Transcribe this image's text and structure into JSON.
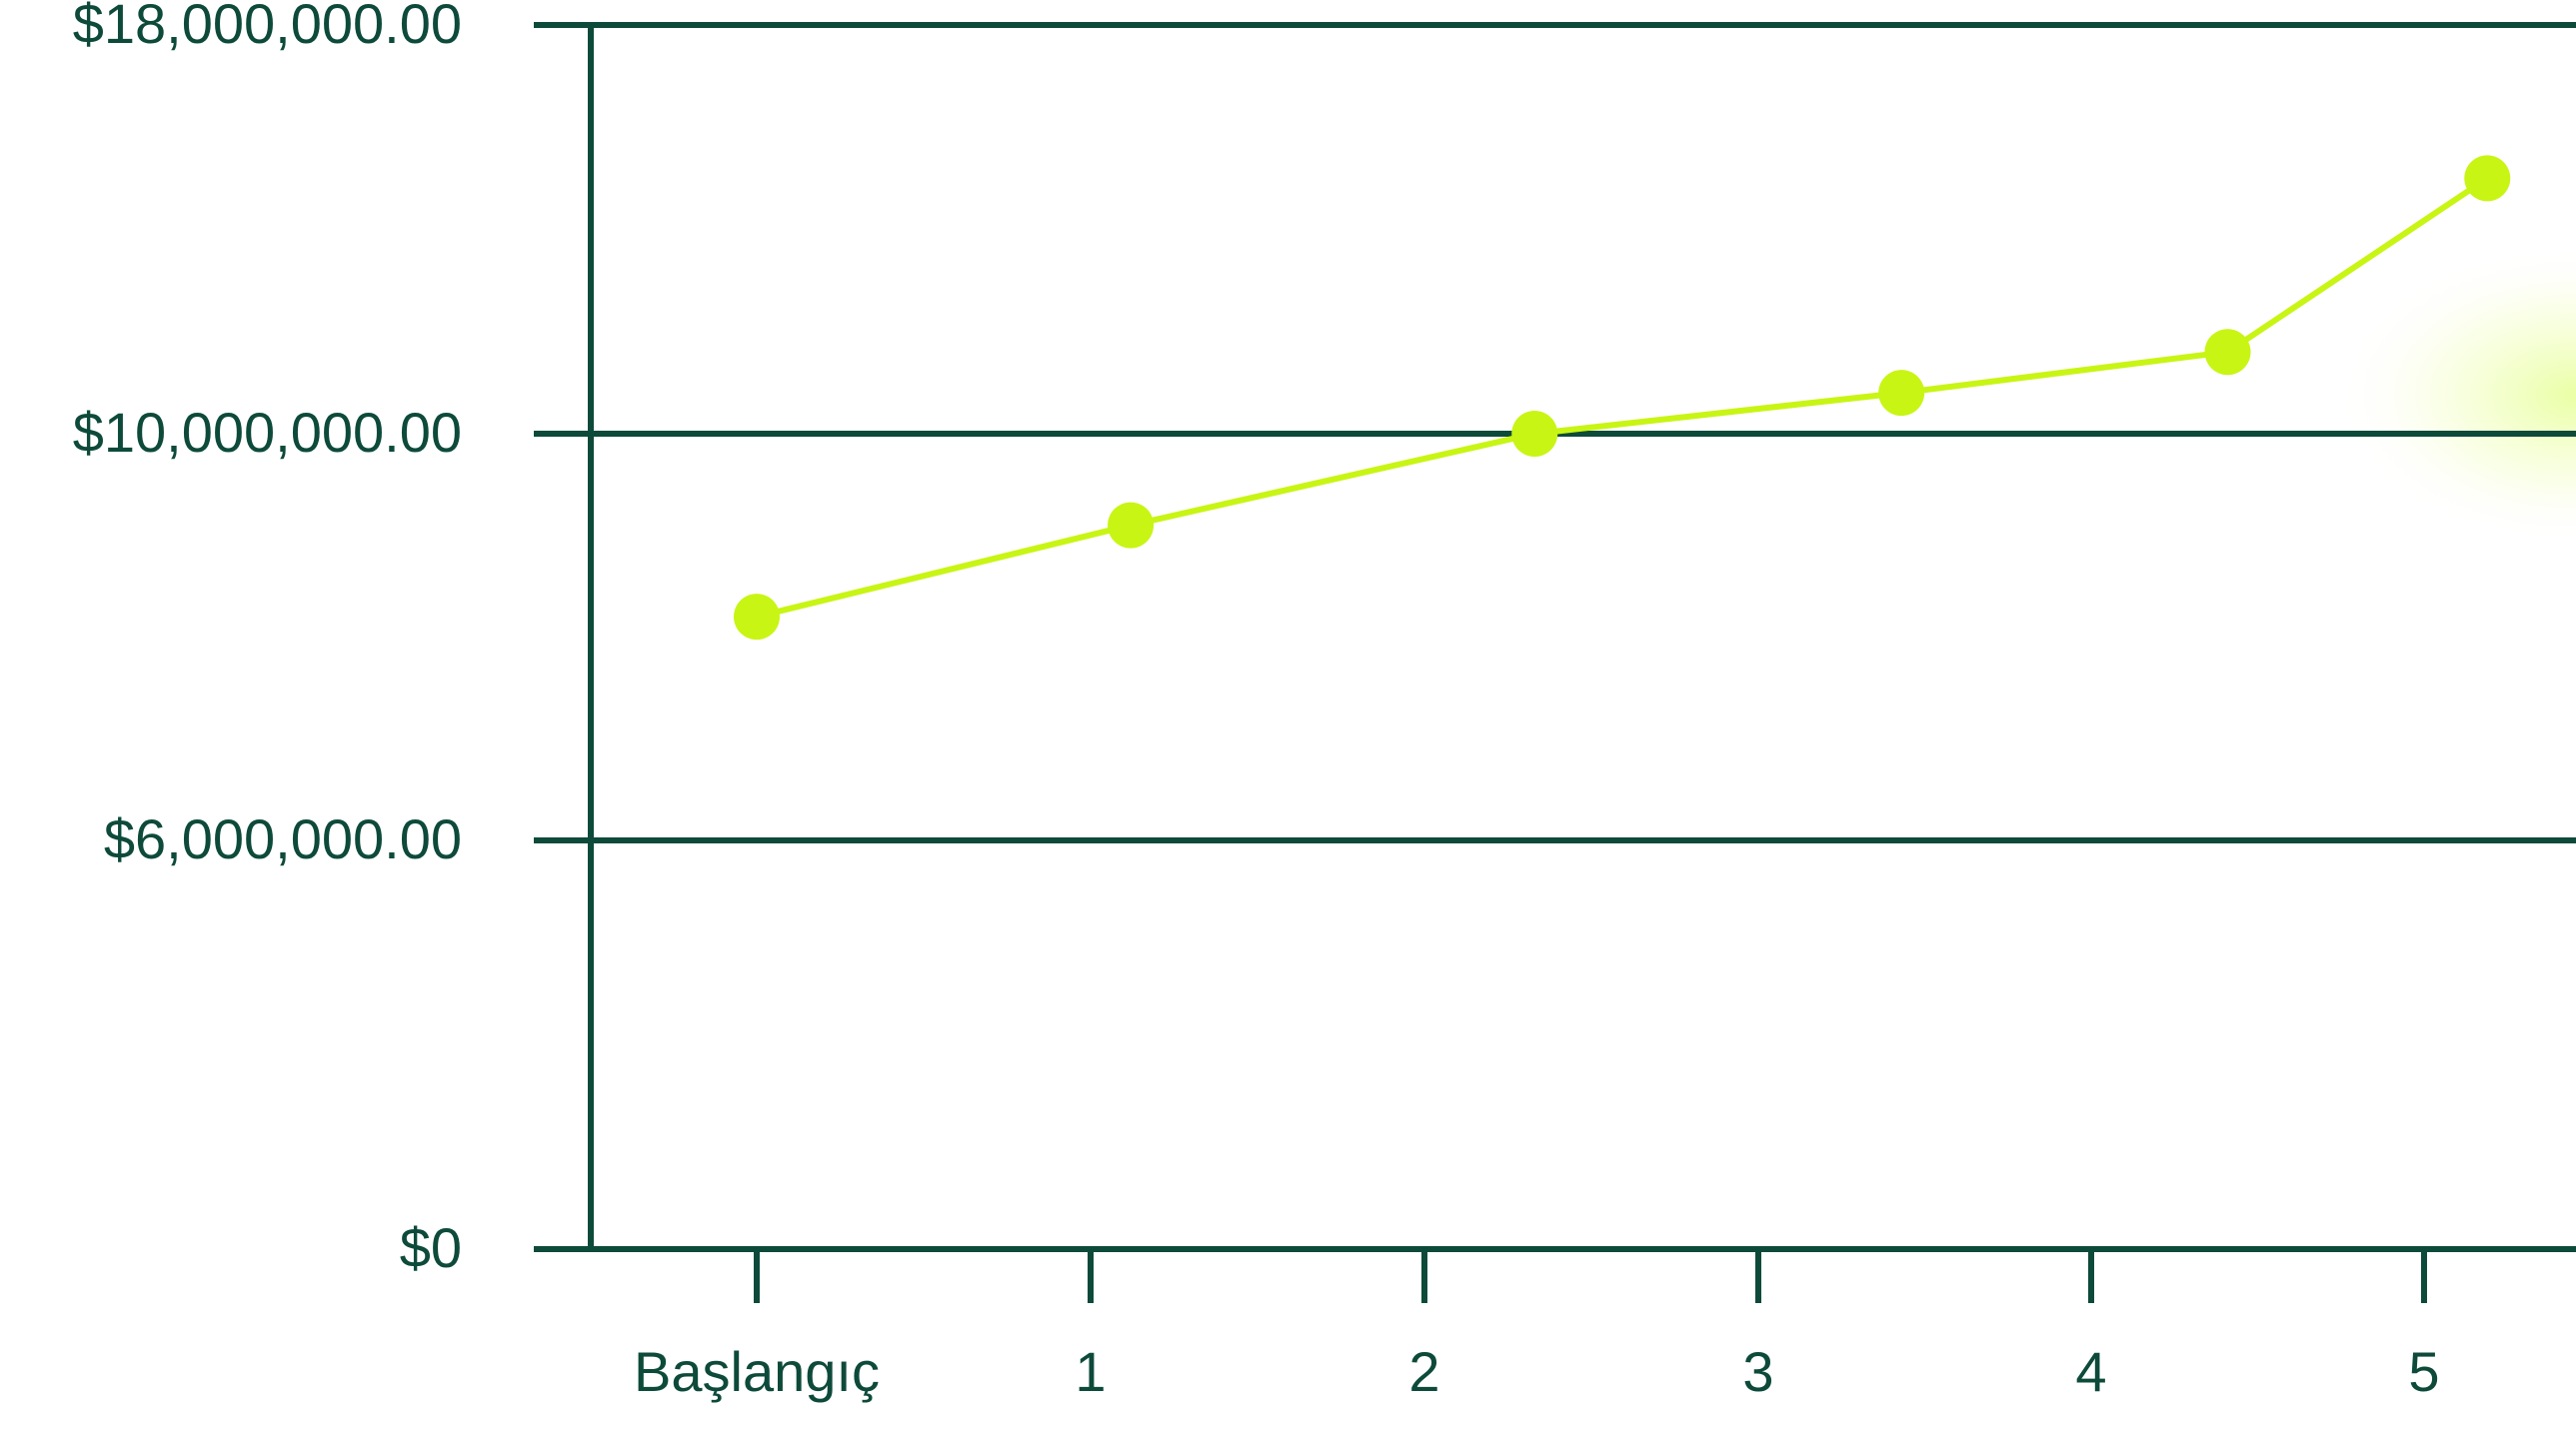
{
  "colors": {
    "axis": "#0d4a3a",
    "series": "#c8f514",
    "glow": "#d8ff5a"
  },
  "chart_data": {
    "type": "line",
    "title": "",
    "xlabel": "",
    "ylabel": "",
    "grid": true,
    "legend": "none",
    "y_ticks": [
      {
        "value": 0,
        "label": "$0"
      },
      {
        "value": 6000000,
        "label": "$6,000,000.00"
      },
      {
        "value": 10000000,
        "label": "$10,000,000.00"
      },
      {
        "value": 18000000,
        "label": "$18,000,000.00"
      }
    ],
    "x_ticks": [
      {
        "value": 0,
        "label": "Başlangıç"
      },
      {
        "value": 1,
        "label": "1"
      },
      {
        "value": 2,
        "label": "2"
      },
      {
        "value": 3,
        "label": "3"
      },
      {
        "value": 4,
        "label": "4"
      },
      {
        "value": 5,
        "label": "5"
      }
    ],
    "series": [
      {
        "points": [
          {
            "x": 0.0,
            "y": 8200000
          },
          {
            "x": 1.12,
            "y": 9100000
          },
          {
            "x": 2.33,
            "y": 10000000
          },
          {
            "x": 3.43,
            "y": 10800000
          },
          {
            "x": 4.41,
            "y": 11600000
          },
          {
            "x": 5.19,
            "y": 15000000
          }
        ]
      }
    ]
  }
}
